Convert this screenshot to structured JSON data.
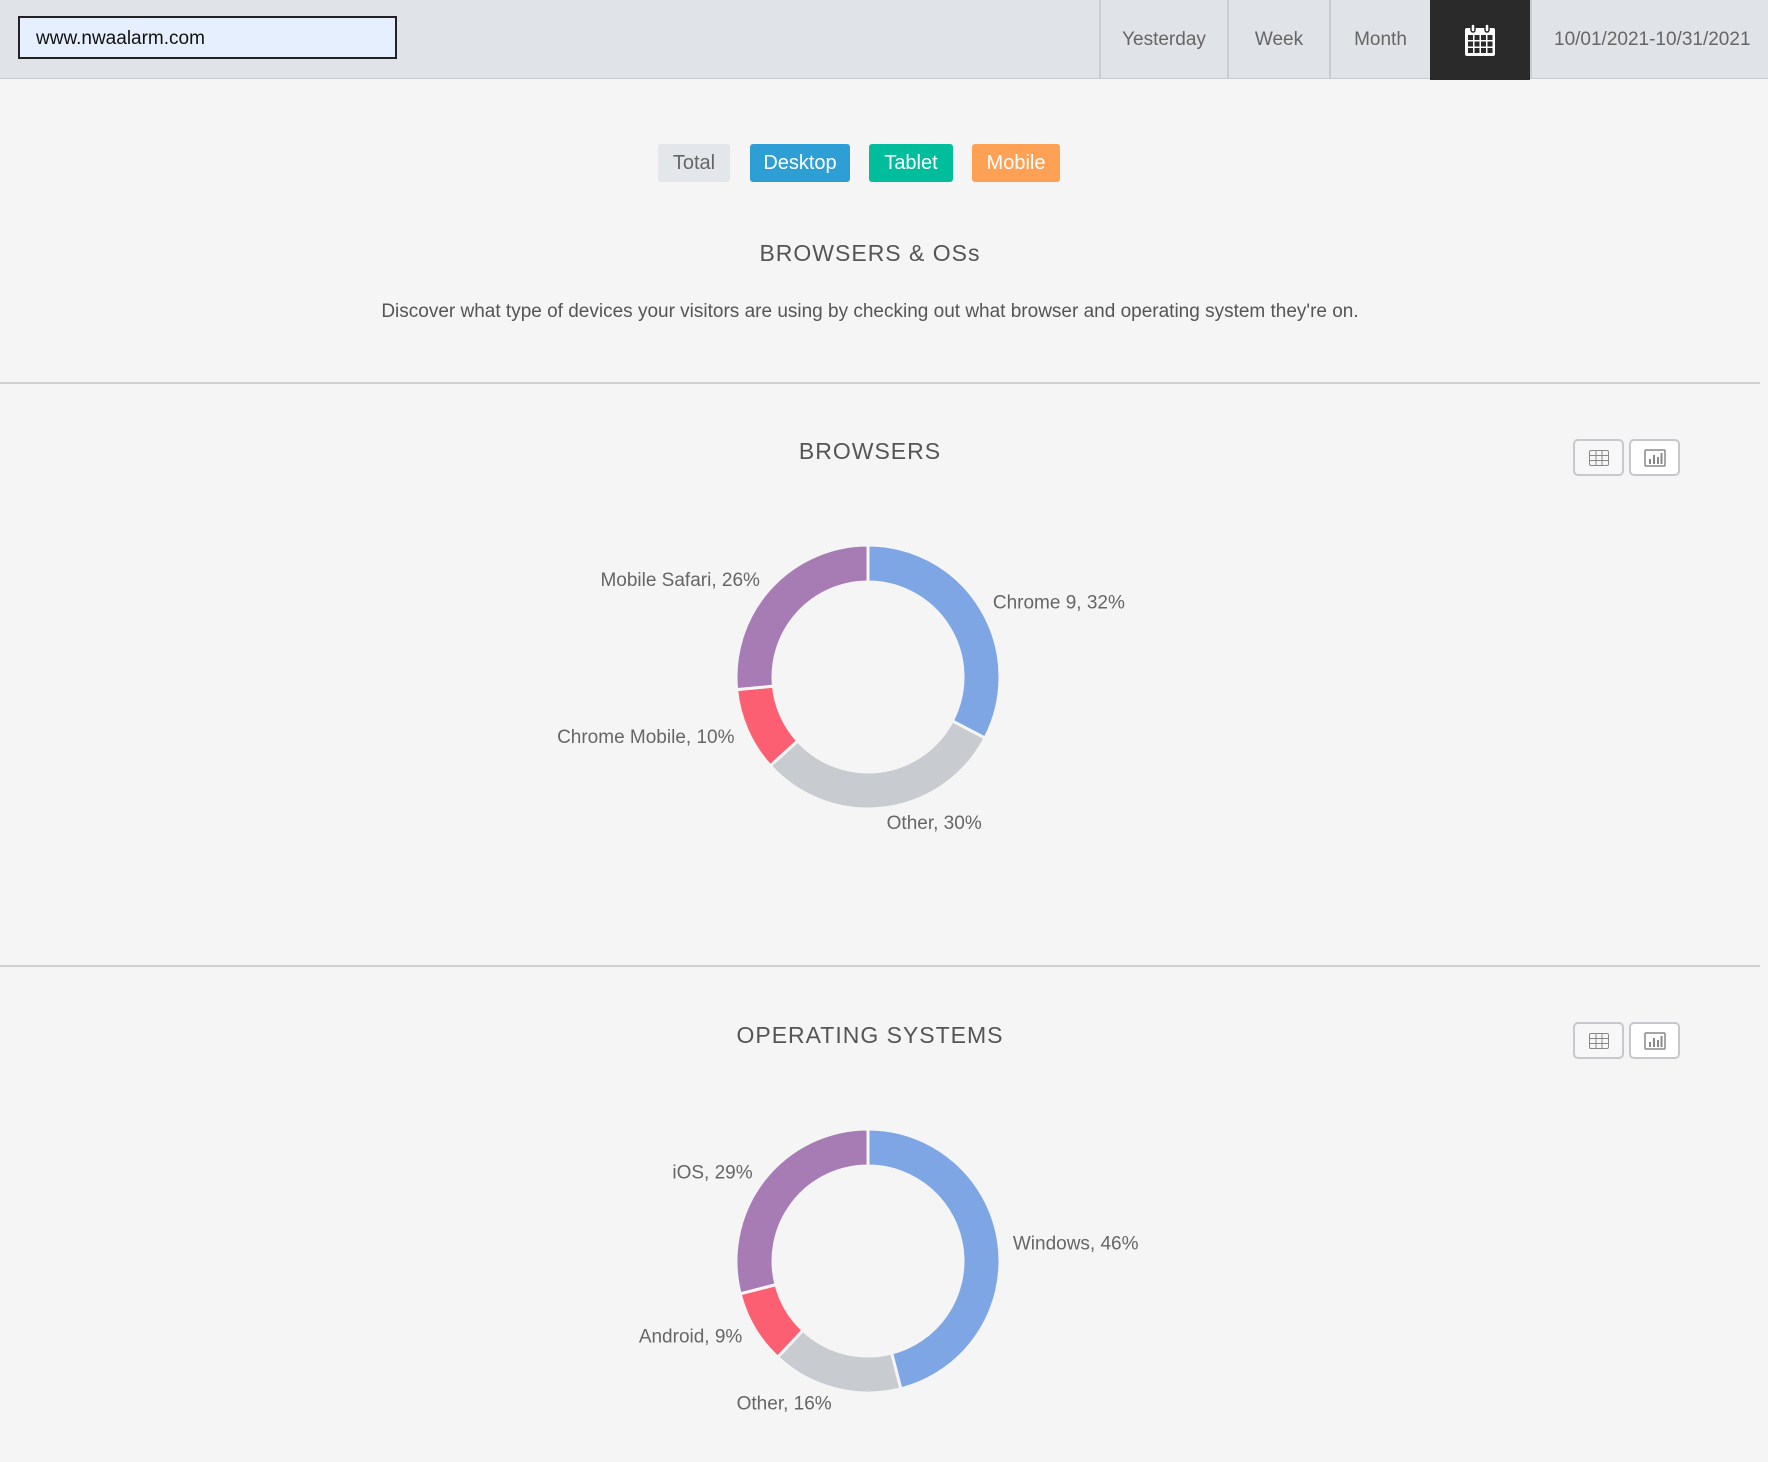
{
  "header": {
    "url": "www.nwaalarm.com",
    "ranges": [
      "Yesterday",
      "Week",
      "Month"
    ],
    "calendar_icon": "calendar-icon",
    "date_range": "10/01/2021-10/31/2021"
  },
  "filters": [
    {
      "label": "Total",
      "color": "#e3e6ea",
      "text": "#666"
    },
    {
      "label": "Desktop",
      "color": "#2e9fd4",
      "text": "#fff"
    },
    {
      "label": "Tablet",
      "color": "#00bd9c",
      "text": "#fff"
    },
    {
      "label": "Mobile",
      "color": "#ffa155",
      "text": "#fff"
    }
  ],
  "intro": {
    "title": "BROWSERS & OSs",
    "description": "Discover what type of devices your visitors are using by checking out what browser and operating system they're on."
  },
  "view_buttons": {
    "table_icon": "table-icon",
    "chart_icon": "bar-chart-icon"
  },
  "chart_data": [
    {
      "type": "pie",
      "donut": true,
      "title": "BROWSERS",
      "slices": [
        {
          "label": "Chrome 9, 32%",
          "name": "Chrome 9",
          "value": 32,
          "color": "#7fa6e4"
        },
        {
          "label": "Other, 30%",
          "name": "Other",
          "value": 30,
          "color": "#c8ccd1"
        },
        {
          "label": "Chrome Mobile, 10%",
          "name": "Chrome Mobile",
          "value": 10,
          "color": "#fc5f72"
        },
        {
          "label": "Mobile Safari, 26%",
          "name": "Mobile Safari",
          "value": 26,
          "color": "#a77bb4"
        }
      ]
    },
    {
      "type": "pie",
      "donut": true,
      "title": "OPERATING SYSTEMS",
      "slices": [
        {
          "label": "Windows, 46%",
          "name": "Windows",
          "value": 46,
          "color": "#7fa6e4"
        },
        {
          "label": "Other, 16%",
          "name": "Other",
          "value": 16,
          "color": "#c8ccd1"
        },
        {
          "label": "Android, 9%",
          "name": "Android",
          "value": 9,
          "color": "#fc5f72"
        },
        {
          "label": "iOS, 29%",
          "name": "iOS",
          "value": 29,
          "color": "#a77bb4"
        }
      ]
    }
  ]
}
